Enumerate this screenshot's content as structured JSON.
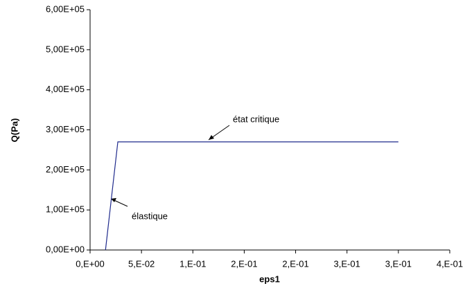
{
  "chart_data": {
    "type": "line",
    "x_label": "eps1",
    "y_label": "Q(Pa)",
    "x": [
      0.015,
      0.027,
      0.3
    ],
    "series": [
      {
        "color": "#1f2a8c",
        "values": [
          0,
          270000,
          270000
        ]
      }
    ],
    "xlim": [
      0,
      0.35
    ],
    "xticks": [
      {
        "value": 0,
        "label": "0,E+00"
      },
      {
        "value": 0.05,
        "label": "5,E-02"
      },
      {
        "value": 0.1,
        "label": "1,E-01"
      },
      {
        "value": 0.15,
        "label": "2,E-01"
      },
      {
        "value": 0.2,
        "label": "2,E-01"
      },
      {
        "value": 0.25,
        "label": "3,E-01"
      },
      {
        "value": 0.3,
        "label": "3,E-01"
      },
      {
        "value": 0.35,
        "label": "4,E-01"
      }
    ],
    "ylim": [
      0,
      600000
    ],
    "yticks": [
      {
        "value": 0,
        "label": "0,00E+00"
      },
      {
        "value": 100000,
        "label": "1,00E+05"
      },
      {
        "value": 200000,
        "label": "2,00E+05"
      },
      {
        "value": 300000,
        "label": "3,00E+05"
      },
      {
        "value": 400000,
        "label": "4,00E+05"
      },
      {
        "value": 500000,
        "label": "5,00E+05"
      },
      {
        "value": 600000,
        "label": "6,00E+05"
      }
    ],
    "annotations": [
      {
        "text": "état critique"
      },
      {
        "text": "élastique"
      }
    ],
    "grid": false
  }
}
